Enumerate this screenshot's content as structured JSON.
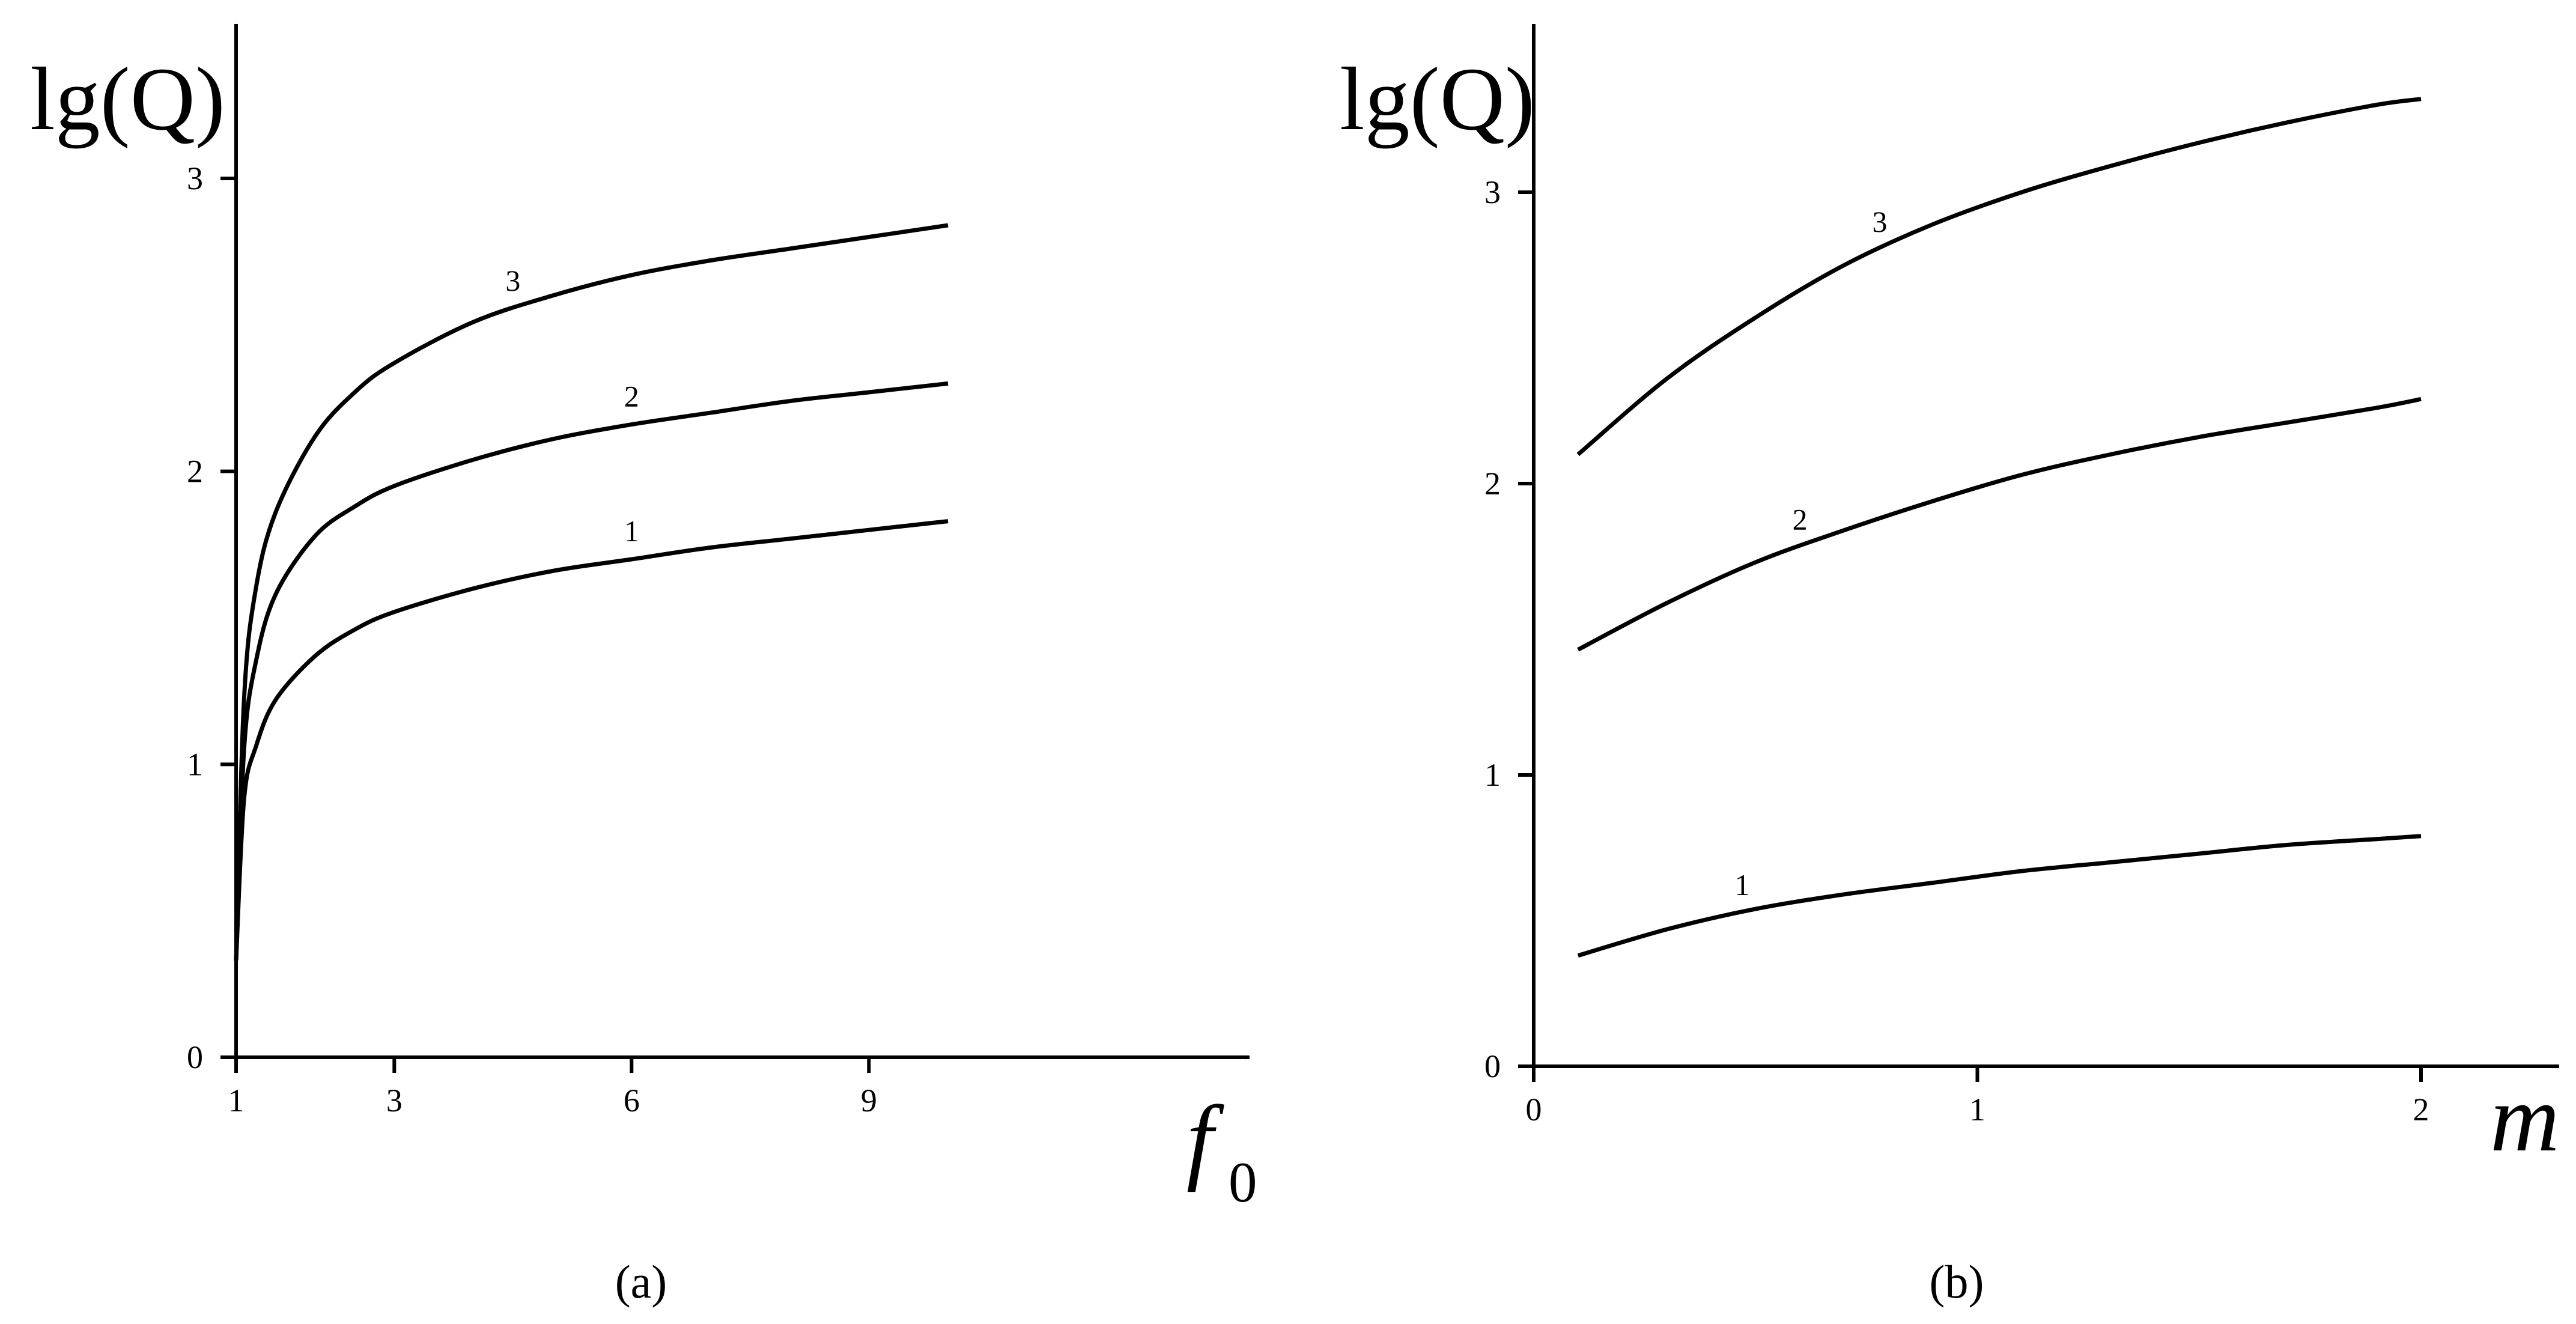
{
  "chart_data": [
    {
      "type": "line",
      "panel_label": "(a)",
      "ylabel": "lg(Q)",
      "xlabel": "f",
      "xlabel_subscript": "0",
      "xlim": [
        1,
        10
      ],
      "ylim": [
        0,
        3
      ],
      "xticks": [
        1,
        3,
        6,
        9
      ],
      "yticks": [
        0,
        1,
        2,
        3
      ],
      "series": [
        {
          "name": "1",
          "x": [
            1.0,
            1.1,
            1.25,
            1.5,
            2,
            2.5,
            3,
            4,
            5,
            6,
            7,
            8,
            9,
            10
          ],
          "y": [
            0.33,
            0.88,
            1.06,
            1.22,
            1.37,
            1.46,
            1.52,
            1.6,
            1.66,
            1.7,
            1.74,
            1.77,
            1.8,
            1.83
          ]
        },
        {
          "name": "2",
          "x": [
            1.0,
            1.1,
            1.25,
            1.5,
            2,
            2.5,
            3,
            4,
            5,
            6,
            7,
            8,
            9,
            10
          ],
          "y": [
            0.33,
            1.05,
            1.35,
            1.58,
            1.78,
            1.88,
            1.95,
            2.04,
            2.11,
            2.16,
            2.2,
            2.24,
            2.27,
            2.3
          ]
        },
        {
          "name": "3",
          "x": [
            1.0,
            1.1,
            1.25,
            1.5,
            2,
            2.5,
            3,
            4,
            5,
            6,
            7,
            8,
            9,
            10
          ],
          "y": [
            0.33,
            1.22,
            1.6,
            1.86,
            2.12,
            2.27,
            2.37,
            2.51,
            2.6,
            2.67,
            2.72,
            2.76,
            2.8,
            2.84
          ]
        }
      ]
    },
    {
      "type": "line",
      "panel_label": "(b)",
      "ylabel": "lg(Q)",
      "xlabel": "m",
      "xlim": [
        0,
        2
      ],
      "ylim": [
        0,
        3
      ],
      "xticks": [
        0,
        1,
        2
      ],
      "yticks": [
        0,
        1,
        2,
        3
      ],
      "series": [
        {
          "name": "1",
          "x": [
            0.1,
            0.3,
            0.5,
            0.7,
            0.9,
            1.1,
            1.3,
            1.5,
            1.7,
            1.9,
            2.0
          ],
          "y": [
            0.38,
            0.47,
            0.54,
            0.59,
            0.63,
            0.67,
            0.7,
            0.73,
            0.76,
            0.78,
            0.79
          ]
        },
        {
          "name": "2",
          "x": [
            0.1,
            0.3,
            0.5,
            0.7,
            0.9,
            1.1,
            1.3,
            1.5,
            1.7,
            1.9,
            2.0
          ],
          "y": [
            1.43,
            1.59,
            1.73,
            1.84,
            1.94,
            2.03,
            2.1,
            2.16,
            2.21,
            2.26,
            2.29
          ]
        },
        {
          "name": "3",
          "x": [
            0.1,
            0.3,
            0.5,
            0.7,
            0.9,
            1.1,
            1.3,
            1.5,
            1.7,
            1.9,
            2.0
          ],
          "y": [
            2.1,
            2.36,
            2.57,
            2.75,
            2.89,
            3.0,
            3.09,
            3.17,
            3.24,
            3.3,
            3.32
          ]
        }
      ]
    }
  ]
}
